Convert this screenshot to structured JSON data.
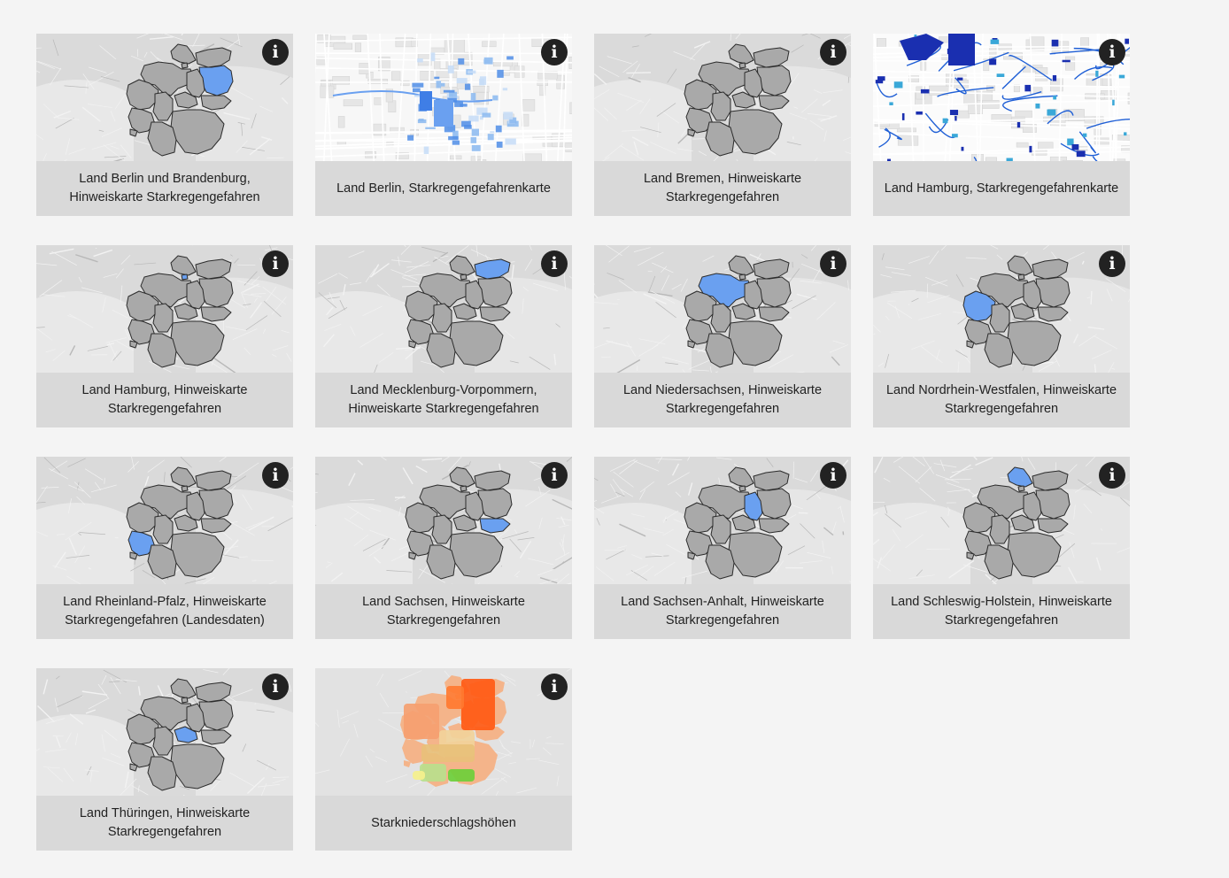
{
  "colors": {
    "page_background": "#f4f4f4",
    "card_background": "#d9d9d9",
    "highlight_blue": "#6aa0f0",
    "info_button": "#222222"
  },
  "cards": [
    {
      "title": "Land Berlin und Brandenburg, Hinweiskarte Starkregengefahren",
      "thumbnail": "germany-state-map",
      "highlight": "berlin-brandenburg",
      "info_icon": "info-icon"
    },
    {
      "title": "Land Berlin, Starkregengefahrenkarte",
      "thumbnail": "city-street-map-flood-light-blue",
      "info_icon": "info-icon"
    },
    {
      "title": "Land Bremen, Hinweiskarte Starkregengefahren",
      "thumbnail": "germany-state-map",
      "highlight": "bremen",
      "info_icon": "info-icon"
    },
    {
      "title": "Land Hamburg, Starkregengefahrenkarte",
      "thumbnail": "city-street-map-flood-dark-blue",
      "info_icon": "info-icon"
    },
    {
      "title": "Land Hamburg, Hinweiskarte Starkregengefahren",
      "thumbnail": "germany-state-map",
      "highlight": "hamburg",
      "info_icon": "info-icon"
    },
    {
      "title": "Land Mecklenburg-Vorpommern, Hinweiskarte Starkregengefahren",
      "thumbnail": "germany-state-map",
      "highlight": "mecklenburg-vorpommern",
      "info_icon": "info-icon"
    },
    {
      "title": "Land Niedersachsen, Hinweiskarte Starkregengefahren",
      "thumbnail": "germany-state-map",
      "highlight": "niedersachsen",
      "info_icon": "info-icon"
    },
    {
      "title": "Land Nordrhein-Westfalen, Hinweiskarte Starkregengefahren",
      "thumbnail": "germany-state-map",
      "highlight": "nordrhein-westfalen",
      "info_icon": "info-icon"
    },
    {
      "title": "Land Rheinland-Pfalz, Hinweiskarte Starkregengefahren (Landesdaten)",
      "thumbnail": "germany-state-map",
      "highlight": "rheinland-pfalz",
      "info_icon": "info-icon"
    },
    {
      "title": "Land Sachsen, Hinweiskarte Starkregengefahren",
      "thumbnail": "germany-state-map",
      "highlight": "sachsen",
      "info_icon": "info-icon"
    },
    {
      "title": "Land Sachsen-Anhalt, Hinweiskarte Starkregengefahren",
      "thumbnail": "germany-state-map",
      "highlight": "sachsen-anhalt",
      "info_icon": "info-icon"
    },
    {
      "title": "Land Schleswig-Holstein, Hinweiskarte Starkregengefahren",
      "thumbnail": "germany-state-map",
      "highlight": "schleswig-holstein",
      "info_icon": "info-icon"
    },
    {
      "title": "Land Thüringen, Hinweiskarte Starkregengefahren",
      "thumbnail": "germany-state-map",
      "highlight": "thueringen",
      "info_icon": "info-icon"
    },
    {
      "title": "Starkniederschlagshöhen",
      "thumbnail": "germany-precipitation-heatmap",
      "info_icon": "info-icon"
    }
  ],
  "info_glyph": "i"
}
